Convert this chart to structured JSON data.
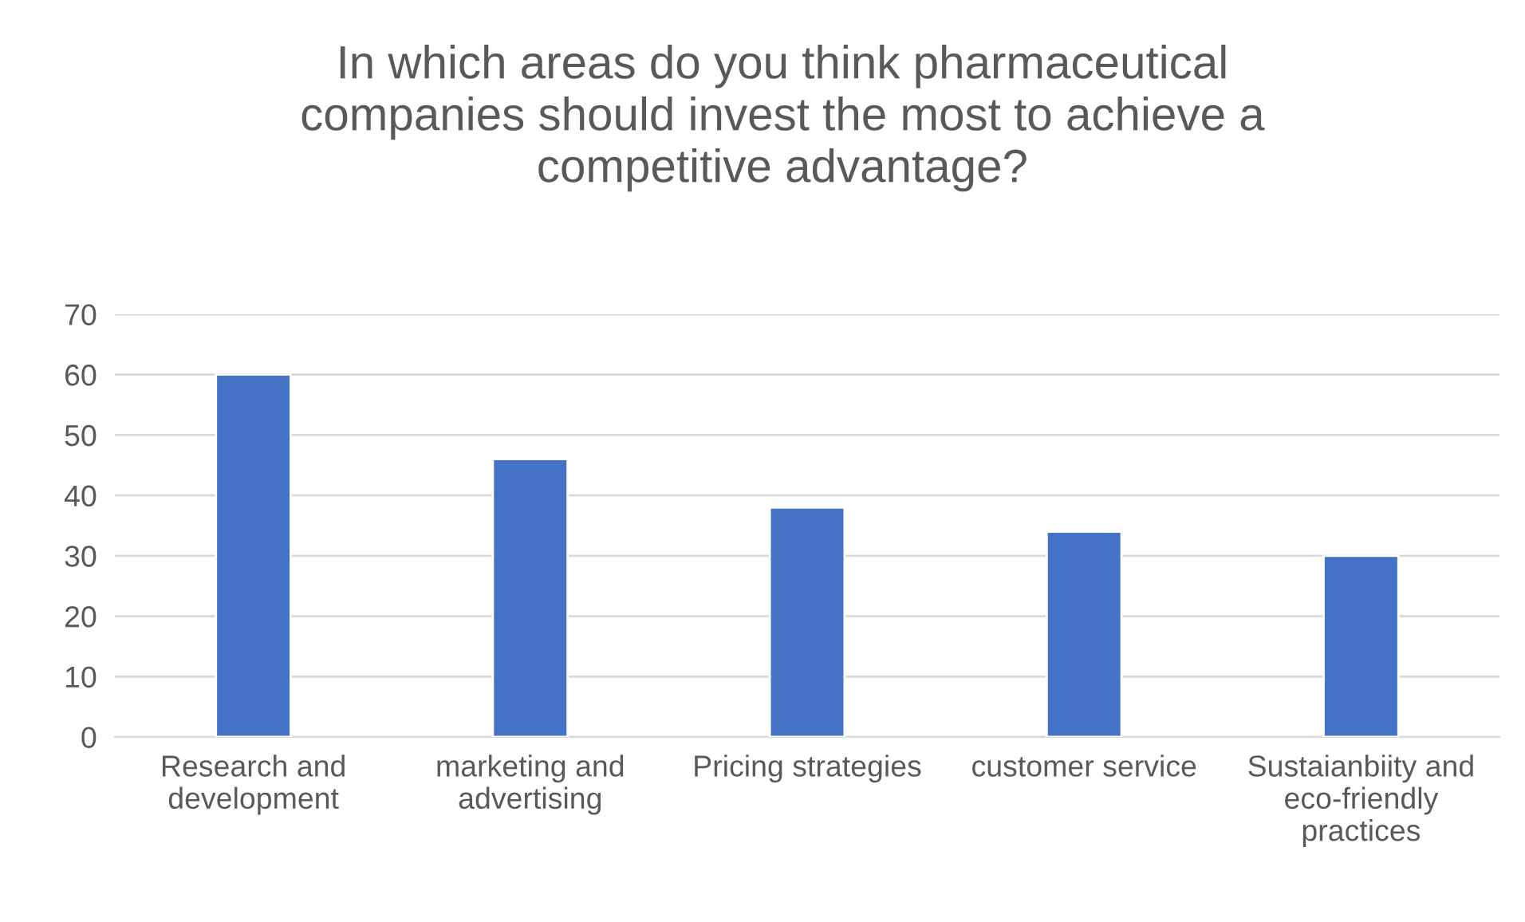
{
  "chart_data": {
    "type": "bar",
    "title": "In which areas do you think pharmaceutical\ncompanies should invest the most to achieve a\ncompetitive advantage?",
    "categories": [
      "Research and\ndevelopment",
      "marketing and\nadvertising",
      "Pricing strategies",
      "customer service",
      "Sustaianbiity and\neco-friendly\npractices"
    ],
    "values": [
      60,
      46,
      38,
      34,
      30
    ],
    "color": "#4472c4",
    "ylim": [
      0,
      70
    ],
    "yticks": [
      0,
      10,
      20,
      30,
      40,
      50,
      60,
      70
    ],
    "grid": "y",
    "legend": false
  }
}
